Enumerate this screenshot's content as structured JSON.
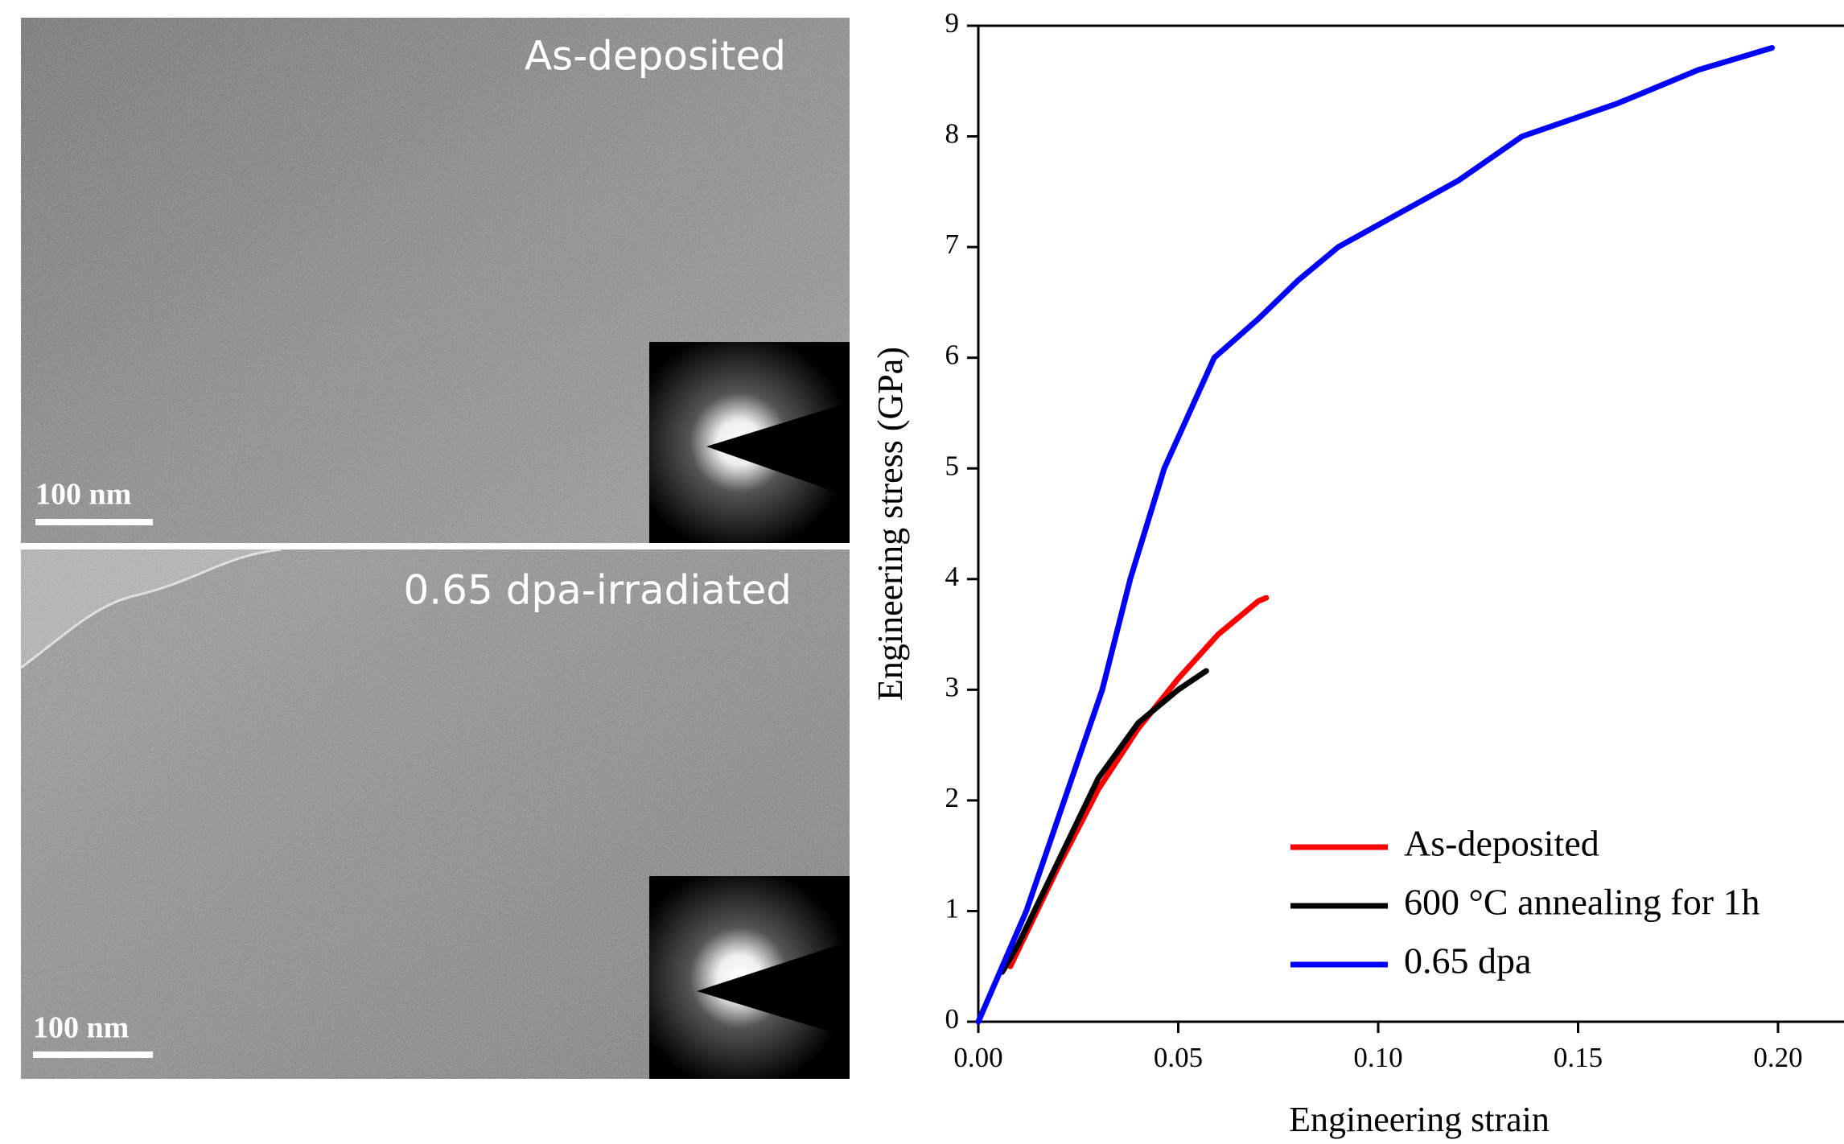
{
  "panels": [
    {
      "label": "As-deposited",
      "scale_bar": "100 nm"
    },
    {
      "label": "0.65 dpa-irradiated",
      "scale_bar": "100 nm"
    }
  ],
  "chart_data": {
    "type": "line",
    "xlabel": "Engineering strain",
    "ylabel": "Engineering stress (GPa)",
    "xlim": [
      0,
      0.2165
    ],
    "ylim": [
      0,
      9
    ],
    "xticks": [
      {
        "value": 0,
        "label": "0.00"
      },
      {
        "value": 0.05,
        "label": "0.05"
      },
      {
        "value": 0.1,
        "label": "0.10"
      },
      {
        "value": 0.15,
        "label": "0.15"
      },
      {
        "value": 0.2,
        "label": "0.20"
      }
    ],
    "yticks": [
      0,
      1,
      2,
      3,
      4,
      5,
      6,
      7,
      8,
      9
    ],
    "legend": "lower right",
    "series": [
      {
        "name": "As-deposited",
        "color": "#ff0000",
        "x": [
          0.008,
          0.02,
          0.03,
          0.04,
          0.05,
          0.06,
          0.07,
          0.072
        ],
        "values": [
          0.5,
          1.4,
          2.1,
          2.65,
          3.1,
          3.5,
          3.8,
          3.83
        ]
      },
      {
        "name": "600 °C annealing for 1h",
        "color": "#000000",
        "x": [
          0.006,
          0.01,
          0.02,
          0.03,
          0.04,
          0.05,
          0.057
        ],
        "values": [
          0.45,
          0.7,
          1.45,
          2.2,
          2.7,
          3.0,
          3.17
        ]
      },
      {
        "name": "0.65 dpa",
        "color": "#0000ff",
        "x": [
          0,
          0.006,
          0.012,
          0.0215,
          0.031,
          0.038,
          0.0465,
          0.059,
          0.07,
          0.08,
          0.09,
          0.1,
          0.12,
          0.136,
          0.16,
          0.18,
          0.1985
        ],
        "values": [
          0,
          0.5,
          1,
          2,
          3,
          4,
          5,
          6,
          6.35,
          6.7,
          7.0,
          7.2,
          7.6,
          8.0,
          8.3,
          8.6,
          8.8
        ]
      }
    ]
  }
}
